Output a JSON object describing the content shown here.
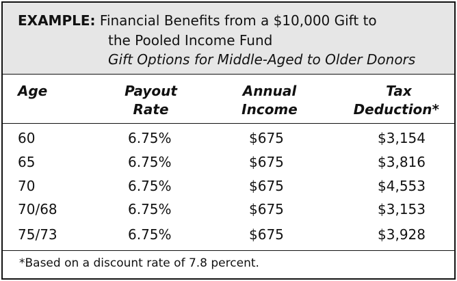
{
  "header": {
    "label": "EXAMPLE:",
    "title_line1": "Financial Benefits from a $10,000 Gift to",
    "title_line2": "the Pooled Income Fund",
    "subtitle": "Gift Options for Middle-Aged to Older Donors"
  },
  "table": {
    "headers": [
      {
        "line1": "Age",
        "line2": ""
      },
      {
        "line1": "Payout",
        "line2": "Rate"
      },
      {
        "line1": "Annual",
        "line2": "Income"
      },
      {
        "line1": "Tax",
        "line2": "Deduction*"
      }
    ],
    "rows": [
      [
        "60",
        "6.75%",
        "$675",
        "$3,154"
      ],
      [
        "65",
        "6.75%",
        "$675",
        "$3,816"
      ],
      [
        "70",
        "6.75%",
        "$675",
        "$4,553"
      ],
      [
        "70/68",
        "6.75%",
        "$675",
        "$3,153"
      ],
      [
        "75/73",
        "6.75%",
        "$675",
        "$3,928"
      ]
    ]
  },
  "footnote": "*Based on a discount rate of 7.8 percent."
}
